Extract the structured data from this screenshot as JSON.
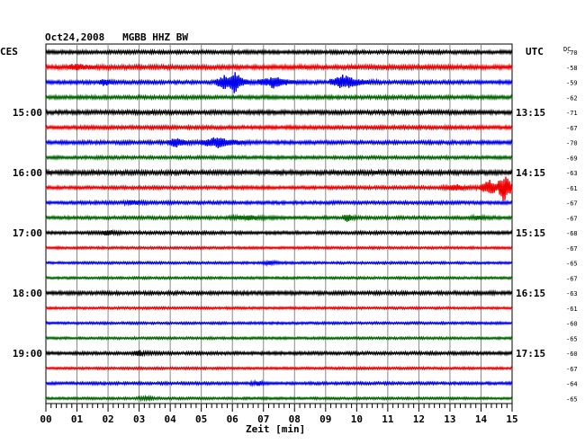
{
  "header": {
    "title": "Oct24,2008   MGBB HHZ BW",
    "left_timezone": "CES",
    "right_timezone": "UTC",
    "dc_label": "DC"
  },
  "chart_data": {
    "type": "line",
    "title": "Oct24,2008   MGBB HHZ BW",
    "xlabel": "Zeit [min]",
    "ylabel": "",
    "xlim": [
      0,
      15
    ],
    "x_ticks": [
      "00",
      "01",
      "02",
      "03",
      "04",
      "05",
      "06",
      "07",
      "08",
      "09",
      "10",
      "11",
      "12",
      "13",
      "14",
      "15"
    ],
    "left_time_labels": [
      {
        "trace": 4,
        "label": "15:00"
      },
      {
        "trace": 8,
        "label": "16:00"
      },
      {
        "trace": 12,
        "label": "17:00"
      },
      {
        "trace": 16,
        "label": "18:00"
      },
      {
        "trace": 20,
        "label": "19:00"
      }
    ],
    "right_time_labels": [
      {
        "trace": 4,
        "label": "13:15"
      },
      {
        "trace": 8,
        "label": "14:15"
      },
      {
        "trace": 12,
        "label": "15:15"
      },
      {
        "trace": 16,
        "label": "16:15"
      },
      {
        "trace": 20,
        "label": "17:15"
      }
    ],
    "dc_offsets": [
      "-70",
      "-58",
      "-59",
      "-62",
      "-71",
      "-67",
      "-70",
      "-69",
      "-63",
      "-61",
      "-67",
      "-67",
      "-68",
      "-67",
      "-65",
      "-67",
      "-63",
      "-61",
      "-60",
      "-65",
      "-60",
      "-67",
      "-64",
      "-65"
    ],
    "trace_colors": [
      "#000000",
      "#ee0000",
      "#0000ee",
      "#006600"
    ],
    "grid": true,
    "traces": [
      {
        "color": "#000000",
        "noise": 1.8,
        "events": []
      },
      {
        "color": "#ee0000",
        "noise": 2.2,
        "events": [
          {
            "t": 1.0,
            "amp": 3,
            "dur": 0.5
          }
        ]
      },
      {
        "color": "#0000ee",
        "noise": 1.8,
        "events": [
          {
            "t": 1.9,
            "amp": 4,
            "dur": 0.3
          },
          {
            "t": 5.8,
            "amp": 8,
            "dur": 0.6
          },
          {
            "t": 6.1,
            "amp": 12,
            "dur": 0.3
          },
          {
            "t": 7.3,
            "amp": 6,
            "dur": 0.8
          },
          {
            "t": 9.6,
            "amp": 8,
            "dur": 0.8
          }
        ]
      },
      {
        "color": "#006600",
        "noise": 1.8,
        "events": []
      },
      {
        "color": "#000000",
        "noise": 2.0,
        "events": []
      },
      {
        "color": "#ee0000",
        "noise": 1.8,
        "events": []
      },
      {
        "color": "#0000ee",
        "noise": 1.8,
        "events": [
          {
            "t": 4.2,
            "amp": 5,
            "dur": 0.5
          },
          {
            "t": 5.5,
            "amp": 6,
            "dur": 0.9
          }
        ]
      },
      {
        "color": "#006600",
        "noise": 1.6,
        "events": []
      },
      {
        "color": "#000000",
        "noise": 2.2,
        "events": []
      },
      {
        "color": "#ee0000",
        "noise": 1.6,
        "events": [
          {
            "t": 13.2,
            "amp": 3,
            "dur": 0.8
          },
          {
            "t": 14.3,
            "amp": 8,
            "dur": 0.6
          },
          {
            "t": 14.75,
            "amp": 18,
            "dur": 0.35
          }
        ]
      },
      {
        "color": "#0000ee",
        "noise": 1.6,
        "events": [
          {
            "t": 2.8,
            "amp": 2,
            "dur": 0.5
          }
        ]
      },
      {
        "color": "#006600",
        "noise": 1.6,
        "events": [
          {
            "t": 6.5,
            "amp": 2,
            "dur": 1.0
          },
          {
            "t": 9.7,
            "amp": 4,
            "dur": 0.3
          },
          {
            "t": 13.9,
            "amp": 2,
            "dur": 0.5
          }
        ]
      },
      {
        "color": "#000000",
        "noise": 1.6,
        "events": [
          {
            "t": 2.0,
            "amp": 2.5,
            "dur": 0.4
          }
        ]
      },
      {
        "color": "#ee0000",
        "noise": 1.2,
        "events": []
      },
      {
        "color": "#0000ee",
        "noise": 1.2,
        "events": [
          {
            "t": 7.2,
            "amp": 2,
            "dur": 0.4
          }
        ]
      },
      {
        "color": "#006600",
        "noise": 1.2,
        "events": []
      },
      {
        "color": "#000000",
        "noise": 1.8,
        "events": []
      },
      {
        "color": "#ee0000",
        "noise": 1.2,
        "events": []
      },
      {
        "color": "#0000ee",
        "noise": 1.2,
        "events": []
      },
      {
        "color": "#006600",
        "noise": 1.2,
        "events": []
      },
      {
        "color": "#000000",
        "noise": 1.6,
        "events": [
          {
            "t": 3.0,
            "amp": 2.5,
            "dur": 0.4
          }
        ]
      },
      {
        "color": "#ee0000",
        "noise": 1.2,
        "events": []
      },
      {
        "color": "#0000ee",
        "noise": 1.4,
        "events": [
          {
            "t": 6.8,
            "amp": 2,
            "dur": 0.4
          }
        ]
      },
      {
        "color": "#006600",
        "noise": 1.2,
        "events": [
          {
            "t": 3.2,
            "amp": 2,
            "dur": 0.4
          }
        ]
      }
    ]
  }
}
